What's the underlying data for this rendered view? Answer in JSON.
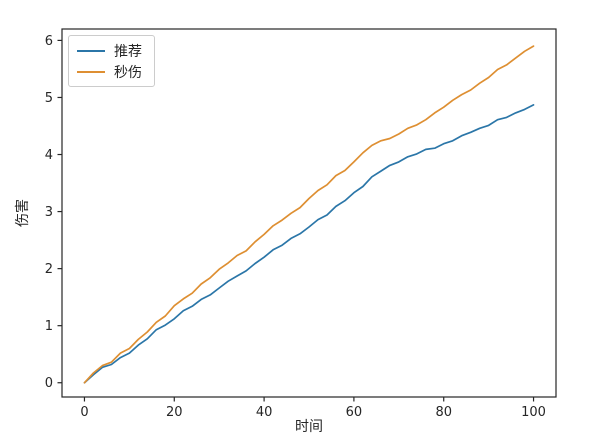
{
  "figure": {
    "background": "#ffffff",
    "axis_color": "#262626"
  },
  "chart_data": {
    "type": "line",
    "title": "",
    "xlabel": "时间",
    "ylabel": "伤害",
    "xlim": [
      -5,
      105
    ],
    "ylim": [
      -0.25,
      6.2
    ],
    "xticks": [
      0,
      20,
      40,
      60,
      80,
      100
    ],
    "yticks": [
      0,
      1,
      2,
      3,
      4,
      5,
      6
    ],
    "grid": false,
    "legend_position": "upper-left",
    "x": [
      0,
      2,
      4,
      6,
      8,
      10,
      12,
      14,
      16,
      18,
      20,
      22,
      24,
      26,
      28,
      30,
      32,
      34,
      36,
      38,
      40,
      42,
      44,
      46,
      48,
      50,
      52,
      54,
      56,
      58,
      60,
      62,
      64,
      66,
      68,
      70,
      72,
      74,
      76,
      78,
      80,
      82,
      84,
      86,
      88,
      90,
      92,
      94,
      96,
      98,
      100
    ],
    "series": [
      {
        "name": "推荐",
        "color": "#2b76a8",
        "values": [
          0.0,
          0.14,
          0.27,
          0.32,
          0.44,
          0.52,
          0.66,
          0.77,
          0.93,
          1.01,
          1.12,
          1.26,
          1.34,
          1.46,
          1.54,
          1.66,
          1.78,
          1.87,
          1.96,
          2.09,
          2.2,
          2.33,
          2.41,
          2.53,
          2.61,
          2.73,
          2.86,
          2.94,
          3.09,
          3.19,
          3.33,
          3.44,
          3.61,
          3.71,
          3.81,
          3.87,
          3.96,
          4.01,
          4.09,
          4.11,
          4.19,
          4.24,
          4.33,
          4.39,
          4.46,
          4.51,
          4.61,
          4.65,
          4.73,
          4.79,
          4.87
        ]
      },
      {
        "name": "秒伤",
        "color": "#de8f32",
        "values": [
          0.0,
          0.17,
          0.3,
          0.36,
          0.52,
          0.6,
          0.76,
          0.89,
          1.06,
          1.17,
          1.35,
          1.47,
          1.57,
          1.73,
          1.84,
          1.99,
          2.1,
          2.23,
          2.31,
          2.47,
          2.6,
          2.75,
          2.85,
          2.97,
          3.07,
          3.23,
          3.37,
          3.47,
          3.63,
          3.72,
          3.87,
          4.03,
          4.16,
          4.24,
          4.28,
          4.36,
          4.46,
          4.52,
          4.61,
          4.73,
          4.83,
          4.95,
          5.05,
          5.13,
          5.25,
          5.35,
          5.49,
          5.57,
          5.69,
          5.81,
          5.9
        ]
      }
    ]
  }
}
